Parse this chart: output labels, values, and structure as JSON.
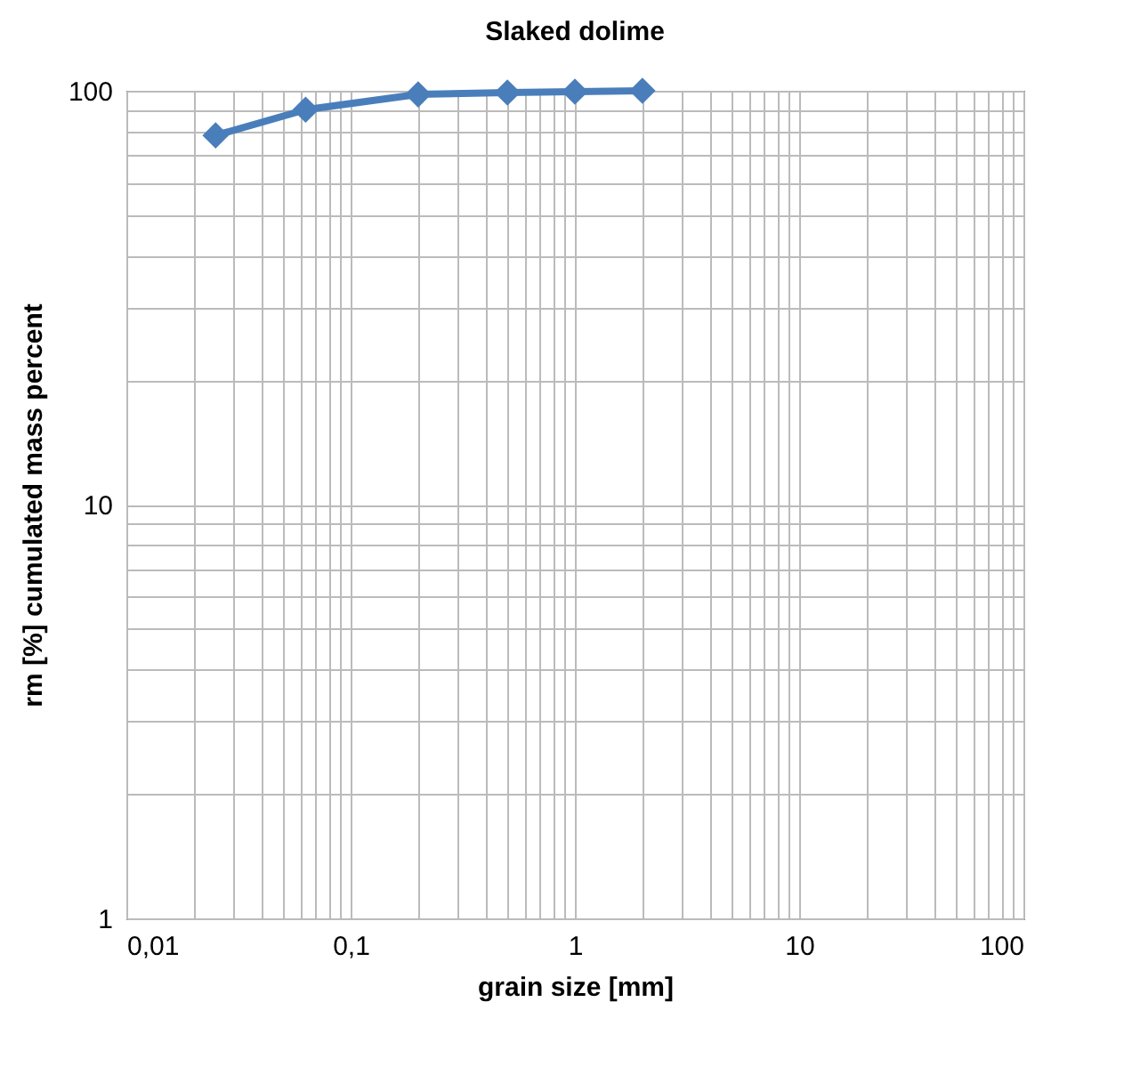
{
  "chart_data": {
    "type": "line",
    "title": "Slaked dolime",
    "xlabel": "grain size [mm]",
    "ylabel": "rm [%] cumulated mass percent",
    "log": "xy",
    "grid": true,
    "marker": "diamond",
    "line_style": "solid",
    "legend": false,
    "x": [
      0.025,
      0.063,
      0.2,
      0.5,
      1,
      2
    ],
    "series": [
      {
        "color": "#4a7ebb",
        "values": [
          78,
          90,
          98,
          99,
          99.5,
          100
        ]
      }
    ],
    "xlim": [
      0.01,
      100
    ],
    "ylim": [
      1,
      100
    ],
    "xticks": [
      {
        "value": 0.01,
        "label": "0,01"
      },
      {
        "value": 0.02,
        "label": null
      },
      {
        "value": 0.03,
        "label": null
      },
      {
        "value": 0.04,
        "label": null
      },
      {
        "value": 0.05,
        "label": null
      },
      {
        "value": 0.06,
        "label": null
      },
      {
        "value": 0.07,
        "label": null
      },
      {
        "value": 0.08,
        "label": null
      },
      {
        "value": 0.09,
        "label": null
      },
      {
        "value": 0.1,
        "label": "0,1"
      },
      {
        "value": 0.2,
        "label": null
      },
      {
        "value": 0.3,
        "label": null
      },
      {
        "value": 0.4,
        "label": null
      },
      {
        "value": 0.5,
        "label": null
      },
      {
        "value": 0.6,
        "label": null
      },
      {
        "value": 0.7,
        "label": null
      },
      {
        "value": 0.8,
        "label": null
      },
      {
        "value": 0.9,
        "label": null
      },
      1,
      {
        "value": 2,
        "label": null
      },
      {
        "value": 3,
        "label": null
      },
      {
        "value": 4,
        "label": null
      },
      {
        "value": 5,
        "label": null
      },
      {
        "value": 6,
        "label": null
      },
      {
        "value": 7,
        "label": null
      },
      {
        "value": 8,
        "label": null
      },
      {
        "value": 9,
        "label": null
      },
      10,
      {
        "value": 20,
        "label": null
      },
      {
        "value": 30,
        "label": null
      },
      {
        "value": 40,
        "label": null
      },
      {
        "value": 50,
        "label": null
      },
      {
        "value": 60,
        "label": null
      },
      {
        "value": 70,
        "label": null
      },
      {
        "value": 80,
        "label": null
      },
      {
        "value": 90,
        "label": null
      },
      100
    ],
    "yticks": [
      1,
      {
        "value": 2,
        "label": null
      },
      {
        "value": 3,
        "label": null
      },
      {
        "value": 4,
        "label": null
      },
      {
        "value": 5,
        "label": null
      },
      {
        "value": 6,
        "label": null
      },
      {
        "value": 7,
        "label": null
      },
      {
        "value": 8,
        "label": null
      },
      {
        "value": 9,
        "label": null
      },
      10,
      {
        "value": 20,
        "label": null
      },
      {
        "value": 30,
        "label": null
      },
      {
        "value": 40,
        "label": null
      },
      {
        "value": 50,
        "label": null
      },
      {
        "value": 60,
        "label": null
      },
      {
        "value": 70,
        "label": null
      },
      {
        "value": 80,
        "label": null
      },
      {
        "value": 90,
        "label": null
      },
      100
    ]
  }
}
